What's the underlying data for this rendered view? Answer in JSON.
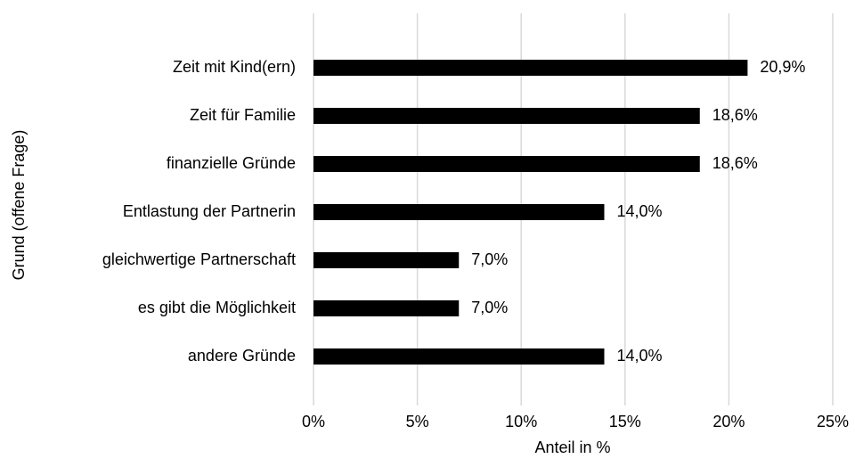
{
  "chart_data": {
    "type": "bar",
    "orientation": "horizontal",
    "categories": [
      "Zeit mit Kind(ern)",
      "Zeit für Familie",
      "finanzielle Gründe",
      "Entlastung der Partnerin",
      "gleichwertige Partnerschaft",
      "es gibt die Möglichkeit",
      "andere Gründe"
    ],
    "values": [
      20.9,
      18.6,
      18.6,
      14.0,
      7.0,
      7.0,
      14.0
    ],
    "value_labels": [
      "20,9%",
      "18,6%",
      "18,6%",
      "14,0%",
      "7,0%",
      "7,0%",
      "14,0%"
    ],
    "color": "#000000",
    "xlim": [
      0,
      25
    ],
    "xticks": [
      {
        "value": 0,
        "label": "0%"
      },
      {
        "value": 5,
        "label": "5%"
      },
      {
        "value": 10,
        "label": "10%"
      },
      {
        "value": 15,
        "label": "15%"
      },
      {
        "value": 20,
        "label": "20%"
      },
      {
        "value": 25,
        "label": "25%"
      }
    ],
    "x_label": "Anteil in %",
    "y_label": "Grund (offene Frage)",
    "grid": true
  }
}
